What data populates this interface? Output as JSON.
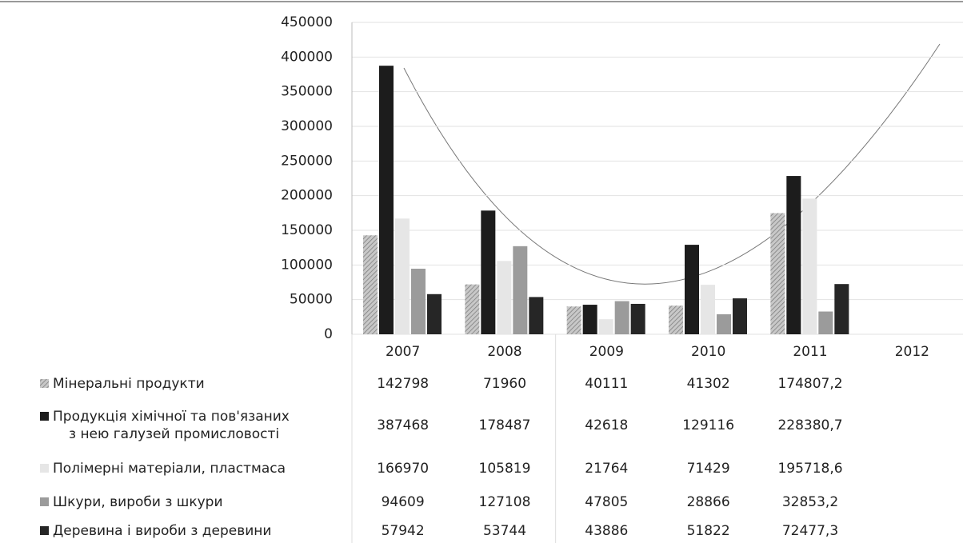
{
  "chart_data": {
    "type": "bar",
    "categories": [
      "2007",
      "2008",
      "2009",
      "2010",
      "2011",
      "2012"
    ],
    "series": [
      {
        "name": "Мінеральні продукти",
        "color": "#a9a9a9",
        "values": [
          142798,
          71960,
          40111,
          41302,
          174807.2,
          null
        ],
        "value_labels": [
          "142798",
          "71960",
          "40111",
          "41302",
          "174807,2",
          null
        ]
      },
      {
        "name": "Продукція хімічної та пов'язаних\nз нею галузей промисловості",
        "color": "#1c1c1c",
        "values": [
          387468,
          178487,
          42618,
          129116,
          228380.7,
          null
        ],
        "value_labels": [
          "387468",
          "178487",
          "42618",
          "129116",
          "228380,7",
          null
        ]
      },
      {
        "name": "Полімерні матеріали, пластмаса",
        "color": "#e6e6e6",
        "values": [
          166970,
          105819,
          21764,
          71429,
          195718.6,
          null
        ],
        "value_labels": [
          "166970",
          "105819",
          "21764",
          "71429",
          "195718,6",
          null
        ]
      },
      {
        "name": "Шкури, вироби з шкури",
        "color": "#9b9b9b",
        "values": [
          94609,
          127108,
          47805,
          28866,
          32853.2,
          null
        ],
        "value_labels": [
          "94609",
          "127108",
          "47805",
          "28866",
          "32853,2",
          null
        ]
      },
      {
        "name": "Деревина і вироби з деревини",
        "color": "#262626",
        "values": [
          57942,
          53744,
          43886,
          51822,
          72477.3,
          null
        ],
        "value_labels": [
          "57942",
          "53744",
          "43886",
          "51822",
          "72477,3",
          null
        ]
      }
    ],
    "ylim": [
      0,
      450000
    ],
    "yticks": [
      0,
      50000,
      100000,
      150000,
      200000,
      250000,
      300000,
      350000,
      400000,
      450000
    ],
    "grid": true
  }
}
